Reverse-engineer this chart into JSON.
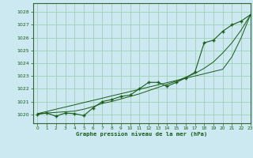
{
  "title": "Graphe pression niveau de la mer (hPa)",
  "bg_color": "#cce8f0",
  "plot_bg_color": "#cce8f0",
  "line_color": "#1a5c1a",
  "grid_color": "#99ccaa",
  "text_color": "#1a5c1a",
  "border_color": "#336633",
  "xlim": [
    -0.5,
    23
  ],
  "ylim": [
    1019.3,
    1028.7
  ],
  "yticks": [
    1020,
    1021,
    1022,
    1023,
    1024,
    1025,
    1026,
    1027,
    1028
  ],
  "xticks": [
    0,
    1,
    2,
    3,
    4,
    5,
    6,
    7,
    8,
    9,
    10,
    11,
    12,
    13,
    14,
    15,
    16,
    17,
    18,
    19,
    20,
    21,
    22,
    23
  ],
  "hours": [
    0,
    1,
    2,
    3,
    4,
    5,
    6,
    7,
    8,
    9,
    10,
    11,
    12,
    13,
    14,
    15,
    16,
    17,
    18,
    19,
    20,
    21,
    22,
    23
  ],
  "pressure": [
    1020.0,
    1020.1,
    1019.85,
    1020.1,
    1020.05,
    1019.9,
    1020.5,
    1021.0,
    1021.15,
    1021.4,
    1021.5,
    1022.0,
    1022.5,
    1022.5,
    1022.2,
    1022.5,
    1022.85,
    1023.3,
    1025.6,
    1025.8,
    1026.5,
    1027.0,
    1027.3,
    1027.8
  ],
  "trend_line": [
    1020.05,
    1020.1,
    1020.15,
    1020.2,
    1020.25,
    1020.4,
    1020.6,
    1020.85,
    1021.0,
    1021.2,
    1021.4,
    1021.6,
    1021.85,
    1022.1,
    1022.35,
    1022.6,
    1022.9,
    1023.2,
    1023.6,
    1024.1,
    1024.8,
    1025.6,
    1026.6,
    1027.8
  ],
  "linear_line": [
    1020.05,
    1020.22,
    1020.4,
    1020.57,
    1020.74,
    1020.92,
    1021.09,
    1021.26,
    1021.44,
    1021.61,
    1021.78,
    1021.96,
    1022.13,
    1022.3,
    1022.48,
    1022.65,
    1022.83,
    1023.0,
    1023.17,
    1023.35,
    1023.52,
    1024.5,
    1026.0,
    1027.8
  ]
}
